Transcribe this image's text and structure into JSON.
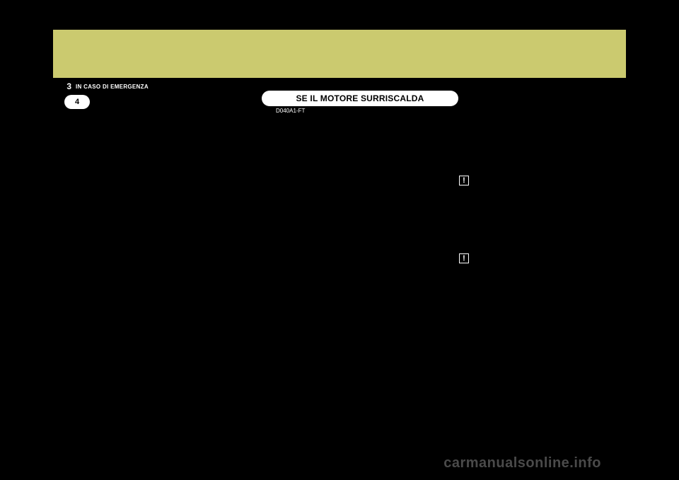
{
  "header": {
    "band_color": "#cbca6f",
    "chapter_number": "3",
    "chapter_title": "IN CASO DI EMERGENZA",
    "page_number": "4"
  },
  "section": {
    "title": "SE IL MOTORE SURRISCALDA",
    "code": "D040A1-FT"
  },
  "warning_symbol": "!",
  "watermark": "carmanualsonline.info",
  "colors": {
    "background": "#000000",
    "band": "#cbca6f",
    "pill_bg": "#ffffff",
    "text_white": "#ffffff",
    "text_black": "#000000",
    "watermark": "#4a4a4a"
  }
}
